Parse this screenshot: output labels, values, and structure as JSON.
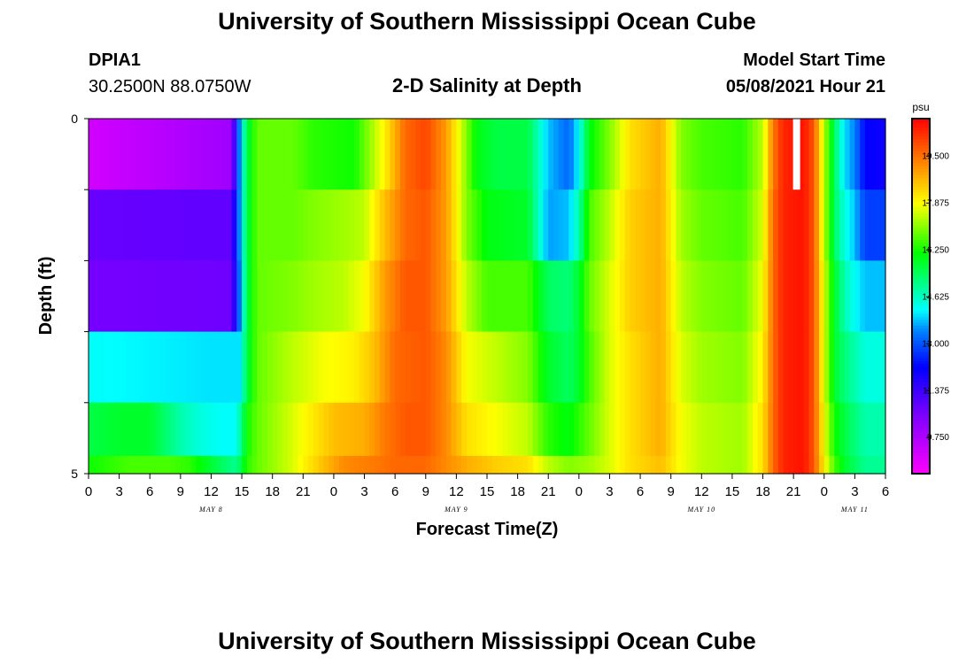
{
  "page": {
    "title_top": "University of Southern Mississippi Ocean Cube",
    "title_bottom": "University of Southern Mississippi Ocean Cube",
    "station_id": "DPIA1",
    "station_coords": "30.2500N  88.0750W",
    "model_start_label": "Model Start Time",
    "model_start_value": "05/08/2021 Hour 21"
  },
  "chart_data": {
    "type": "heatmap",
    "title": "2-D Salinity at Depth",
    "xlabel": "Forecast Time(Z)",
    "ylabel": "Depth (ft)",
    "y_tick_labels": [
      "0",
      "5"
    ],
    "ylim": [
      0,
      5
    ],
    "x_tick_labels": [
      "0",
      "3",
      "6",
      "9",
      "12",
      "15",
      "18",
      "21",
      "0",
      "3",
      "6",
      "9",
      "12",
      "15",
      "18",
      "21",
      "0",
      "3",
      "6",
      "9",
      "12",
      "15",
      "18",
      "21",
      "0",
      "3",
      "6"
    ],
    "day_labels": [
      {
        "text": "MAY 8",
        "hour": 12
      },
      {
        "text": "MAY 9",
        "hour": 36
      },
      {
        "text": "MAY 10",
        "hour": 60
      },
      {
        "text": "MAY 11",
        "hour": 75
      }
    ],
    "x_range_hours": [
      0,
      78
    ],
    "depth_rows_ft": [
      0.5,
      1.5,
      2.5,
      3.5,
      4.5,
      5.0
    ],
    "colorbar": {
      "unit": "psu",
      "min": 8.5,
      "max": 20.8,
      "tick_labels": [
        "9.750",
        "11.375",
        "13.000",
        "14.625",
        "16.250",
        "17.875",
        "19.500"
      ],
      "tick_values": [
        9.75,
        11.375,
        13.0,
        14.625,
        16.25,
        17.875,
        19.5
      ]
    },
    "grid": false,
    "missing_data": {
      "hour": 69.3,
      "depth_row": 0
    },
    "salinity_psu_by_depth": [
      [
        [
          0,
          9.2
        ],
        [
          14,
          10.0
        ],
        [
          14.8,
          13.6
        ],
        [
          15.5,
          15.6
        ],
        [
          16.5,
          16.8
        ],
        [
          20,
          16.8
        ],
        [
          22,
          16.4
        ],
        [
          26,
          16.2
        ],
        [
          27,
          16.8
        ],
        [
          29,
          18.0
        ],
        [
          31,
          19.6
        ],
        [
          33,
          20.0
        ],
        [
          35,
          19.0
        ],
        [
          37,
          17.0
        ],
        [
          38,
          16.0
        ],
        [
          40,
          15.6
        ],
        [
          43,
          15.6
        ],
        [
          45,
          13.8
        ],
        [
          47,
          13.2
        ],
        [
          48,
          14.2
        ],
        [
          49,
          16.0
        ],
        [
          51,
          17.0
        ],
        [
          53,
          18.2
        ],
        [
          56,
          18.8
        ],
        [
          58,
          17.0
        ],
        [
          60,
          16.6
        ],
        [
          64,
          16.4
        ],
        [
          66,
          17.4
        ],
        [
          67,
          19.4
        ],
        [
          68,
          20.4
        ],
        [
          70,
          20.6
        ],
        [
          71,
          19.8
        ],
        [
          72,
          17.4
        ],
        [
          73,
          15.4
        ],
        [
          74,
          14.0
        ],
        [
          75,
          13.4
        ],
        [
          76,
          12.2
        ],
        [
          78,
          12.0
        ]
      ],
      [
        [
          0,
          10.8
        ],
        [
          14,
          10.9
        ],
        [
          14.8,
          13.6
        ],
        [
          15.5,
          15.6
        ],
        [
          16.5,
          16.8
        ],
        [
          20,
          16.8
        ],
        [
          22,
          17.0
        ],
        [
          25,
          17.2
        ],
        [
          27,
          17.4
        ],
        [
          29,
          18.6
        ],
        [
          31,
          19.6
        ],
        [
          33,
          19.8
        ],
        [
          35,
          19.0
        ],
        [
          37,
          17.0
        ],
        [
          39,
          16.0
        ],
        [
          43,
          15.8
        ],
        [
          45,
          13.6
        ],
        [
          47,
          13.8
        ],
        [
          48,
          14.8
        ],
        [
          49,
          16.6
        ],
        [
          51,
          17.4
        ],
        [
          53,
          18.4
        ],
        [
          56,
          18.8
        ],
        [
          58,
          17.2
        ],
        [
          60,
          16.8
        ],
        [
          64,
          16.6
        ],
        [
          66,
          17.6
        ],
        [
          67,
          19.6
        ],
        [
          68,
          20.4
        ],
        [
          70,
          20.6
        ],
        [
          71,
          19.8
        ],
        [
          72,
          17.4
        ],
        [
          73,
          15.4
        ],
        [
          74,
          14.4
        ],
        [
          75,
          13.8
        ],
        [
          76,
          12.8
        ],
        [
          78,
          12.8
        ]
      ],
      [
        [
          0,
          10.6
        ],
        [
          14,
          10.7
        ],
        [
          14.8,
          13.4
        ],
        [
          15.5,
          15.6
        ],
        [
          16.5,
          16.8
        ],
        [
          20,
          17.0
        ],
        [
          22,
          17.2
        ],
        [
          25,
          17.4
        ],
        [
          27,
          17.8
        ],
        [
          29,
          19.0
        ],
        [
          31,
          19.8
        ],
        [
          33,
          19.8
        ],
        [
          35,
          19.0
        ],
        [
          37,
          17.4
        ],
        [
          39,
          16.6
        ],
        [
          43,
          16.6
        ],
        [
          45,
          15.4
        ],
        [
          47,
          15.2
        ],
        [
          48,
          15.8
        ],
        [
          49,
          16.8
        ],
        [
          51,
          17.6
        ],
        [
          53,
          18.4
        ],
        [
          56,
          18.8
        ],
        [
          58,
          17.4
        ],
        [
          60,
          17.0
        ],
        [
          64,
          16.8
        ],
        [
          66,
          17.8
        ],
        [
          67,
          19.6
        ],
        [
          68,
          20.4
        ],
        [
          70,
          20.6
        ],
        [
          71,
          19.8
        ],
        [
          72,
          17.6
        ],
        [
          73,
          15.8
        ],
        [
          74,
          14.8
        ],
        [
          75,
          14.2
        ],
        [
          76,
          13.8
        ],
        [
          78,
          13.8
        ]
      ],
      [
        [
          0,
          14.2
        ],
        [
          12,
          14.0
        ],
        [
          14,
          14.0
        ],
        [
          14.8,
          14.0
        ],
        [
          15.5,
          15.6
        ],
        [
          16.5,
          16.8
        ],
        [
          20,
          17.4
        ],
        [
          23,
          17.8
        ],
        [
          26,
          18.0
        ],
        [
          28,
          18.6
        ],
        [
          30,
          19.6
        ],
        [
          33,
          19.8
        ],
        [
          35,
          19.2
        ],
        [
          37,
          17.8
        ],
        [
          40,
          17.4
        ],
        [
          43,
          17.0
        ],
        [
          45,
          15.8
        ],
        [
          47,
          15.4
        ],
        [
          48,
          15.8
        ],
        [
          49,
          16.6
        ],
        [
          51,
          17.6
        ],
        [
          53,
          18.2
        ],
        [
          56,
          18.8
        ],
        [
          58,
          17.6
        ],
        [
          60,
          17.2
        ],
        [
          64,
          17.0
        ],
        [
          66,
          18.0
        ],
        [
          67,
          19.6
        ],
        [
          68,
          20.4
        ],
        [
          70,
          20.6
        ],
        [
          71,
          19.8
        ],
        [
          72,
          17.6
        ],
        [
          73,
          15.8
        ],
        [
          74,
          15.2
        ],
        [
          75,
          14.8
        ],
        [
          76,
          14.4
        ],
        [
          78,
          14.4
        ]
      ],
      [
        [
          0,
          15.6
        ],
        [
          3,
          15.8
        ],
        [
          6,
          15.8
        ],
        [
          9,
          14.8
        ],
        [
          11,
          14.4
        ],
        [
          13,
          14.2
        ],
        [
          14.5,
          14.2
        ],
        [
          15.5,
          16.2
        ],
        [
          16.5,
          16.8
        ],
        [
          20,
          17.6
        ],
        [
          24,
          18.6
        ],
        [
          27,
          18.8
        ],
        [
          29,
          19.4
        ],
        [
          31,
          19.8
        ],
        [
          33,
          19.8
        ],
        [
          35,
          19.2
        ],
        [
          37,
          18.2
        ],
        [
          40,
          17.8
        ],
        [
          43,
          17.4
        ],
        [
          45,
          16.4
        ],
        [
          47,
          16.0
        ],
        [
          48,
          16.4
        ],
        [
          49,
          16.8
        ],
        [
          51,
          17.6
        ],
        [
          53,
          18.2
        ],
        [
          56,
          18.8
        ],
        [
          58,
          17.8
        ],
        [
          60,
          17.4
        ],
        [
          64,
          17.2
        ],
        [
          66,
          18.2
        ],
        [
          67,
          19.6
        ],
        [
          68,
          20.4
        ],
        [
          70,
          20.6
        ],
        [
          71,
          19.8
        ],
        [
          72,
          17.8
        ],
        [
          73,
          16.2
        ],
        [
          74,
          15.6
        ],
        [
          75,
          15.2
        ],
        [
          76,
          14.8
        ],
        [
          78,
          14.8
        ]
      ],
      [
        [
          0,
          16.2
        ],
        [
          4,
          16.6
        ],
        [
          8,
          16.6
        ],
        [
          10,
          16.4
        ],
        [
          13,
          15.4
        ],
        [
          14.5,
          15.0
        ],
        [
          15.5,
          16.4
        ],
        [
          16.5,
          16.8
        ],
        [
          20,
          17.6
        ],
        [
          23,
          18.6
        ],
        [
          25,
          19.2
        ],
        [
          28,
          19.4
        ],
        [
          30,
          19.6
        ],
        [
          33,
          19.6
        ],
        [
          35,
          19.2
        ],
        [
          37,
          18.8
        ],
        [
          40,
          18.4
        ],
        [
          43,
          18.2
        ],
        [
          45,
          17.4
        ],
        [
          47,
          17.0
        ],
        [
          49,
          17.2
        ],
        [
          51,
          17.6
        ],
        [
          53,
          18.2
        ],
        [
          56,
          18.6
        ],
        [
          58,
          17.8
        ],
        [
          60,
          17.4
        ],
        [
          64,
          17.2
        ],
        [
          66,
          18.2
        ],
        [
          67,
          19.6
        ],
        [
          68,
          20.4
        ],
        [
          70,
          20.6
        ],
        [
          71,
          19.8
        ],
        [
          72,
          18.0
        ],
        [
          73,
          16.6
        ],
        [
          74,
          15.8
        ],
        [
          75,
          15.4
        ],
        [
          76,
          15.0
        ],
        [
          78,
          15.0
        ]
      ]
    ]
  }
}
